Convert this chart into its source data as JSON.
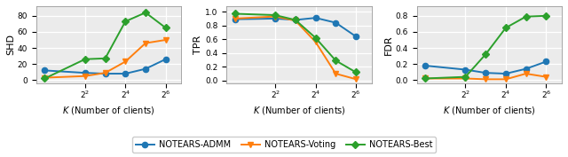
{
  "x_values": [
    1,
    4,
    8,
    16,
    32,
    64
  ],
  "x_ticks": [
    4,
    16,
    64
  ],
  "x_tick_labels": [
    "$2^2$",
    "$2^4$",
    "$2^6$"
  ],
  "shd_admm": [
    12,
    9,
    8,
    8,
    14,
    26
  ],
  "shd_voting": [
    3,
    5,
    9,
    23,
    46,
    50
  ],
  "shd_best": [
    2,
    26,
    27,
    73,
    84,
    65
  ],
  "tpr_admm": [
    0.89,
    0.9,
    0.88,
    0.91,
    0.84,
    0.64
  ],
  "tpr_voting": [
    0.9,
    0.93,
    0.87,
    0.56,
    0.1,
    0.02
  ],
  "tpr_best": [
    0.97,
    0.95,
    0.88,
    0.62,
    0.29,
    0.12
  ],
  "fdr_admm": [
    0.18,
    0.13,
    0.09,
    0.08,
    0.14,
    0.23
  ],
  "fdr_voting": [
    0.02,
    0.02,
    0.01,
    0.01,
    0.08,
    0.04
  ],
  "fdr_best": [
    0.02,
    0.04,
    0.32,
    0.65,
    0.79,
    0.8
  ],
  "color_admm": "#1f77b4",
  "color_voting": "#ff7f0e",
  "color_best": "#2ca02c",
  "marker_admm": "o",
  "marker_voting": "v",
  "marker_best": "D",
  "xlabel": "$K$ (Number of clients)",
  "ylabel_shd": "SHD",
  "ylabel_tpr": "TPR",
  "ylabel_fdr": "FDR",
  "legend_labels": [
    "NOTEARS-ADMM",
    "NOTEARS-Voting",
    "NOTEARS-Best"
  ],
  "shd_ylim": [
    -4,
    92
  ],
  "tpr_ylim": [
    -0.04,
    1.08
  ],
  "fdr_ylim": [
    -0.04,
    0.92
  ],
  "shd_yticks": [
    0,
    20,
    40,
    60,
    80
  ],
  "tpr_yticks": [
    0.0,
    0.2,
    0.4,
    0.6,
    0.8,
    1.0
  ],
  "fdr_yticks": [
    0.0,
    0.2,
    0.4,
    0.6,
    0.8
  ],
  "background_color": "#ebebeb"
}
